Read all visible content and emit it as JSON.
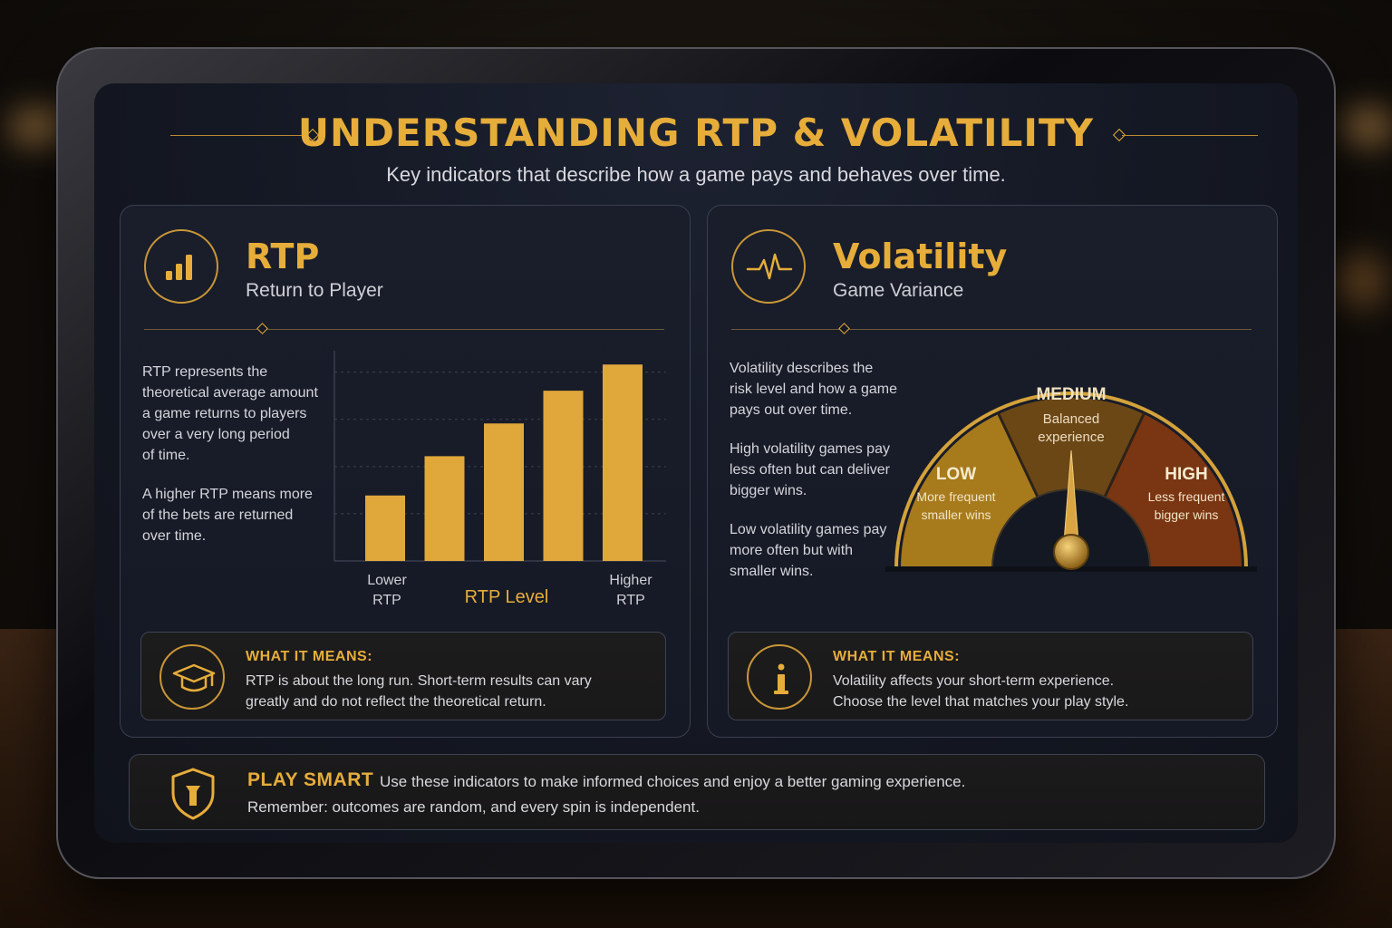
{
  "header": {
    "title": "UNDERSTANDING RTP & VOLATILITY",
    "subtitle": "Key indicators that describe how a game pays and behaves over time."
  },
  "rtp_panel": {
    "icon": "bar-chart-icon",
    "title": "RTP",
    "subtitle": "Return to Player",
    "paragraphs": [
      "RTP represents the\ntheoretical average amount\na game returns to players\nover a very long period\nof time.",
      "A higher RTP means more\nof the bets are returned\nover time."
    ],
    "info": {
      "icon": "graduation-cap-icon",
      "heading": "WHAT IT MEANS:",
      "text": "RTP is about the long run. Short-term results can vary\ngreatly and do not reflect the theoretical return."
    }
  },
  "volatility_panel": {
    "icon": "pulse-icon",
    "title": "Volatility",
    "subtitle": "Game Variance",
    "paragraphs": [
      "Volatility describes the\nrisk level and how a game\npays out over time.",
      "High volatility games pay\nless often but can deliver\nbigger wins.",
      "Low volatility games pay\nmore often but with\nsmaller wins."
    ],
    "gauge": {
      "segments": [
        {
          "label": "LOW",
          "desc1": "More frequent",
          "desc2": "smaller wins",
          "color": "#a77a1c"
        },
        {
          "label": "MEDIUM",
          "desc1": "Balanced",
          "desc2": "experience",
          "color": "#6b4716"
        },
        {
          "label": "HIGH",
          "desc1": "Less frequent",
          "desc2": "bigger wins",
          "color": "#7a3512"
        }
      ],
      "needle_value": 0.5
    },
    "info": {
      "icon": "info-icon",
      "heading": "WHAT IT MEANS:",
      "text": "Volatility affects your short-term experience.\nChoose the level that matches your play style."
    }
  },
  "chart_data": {
    "type": "bar",
    "categories": [
      "1",
      "2",
      "3",
      "4",
      "5"
    ],
    "values": [
      1.0,
      1.6,
      2.1,
      2.6,
      3.0
    ],
    "xlabel": "RTP Level",
    "x_left_label": [
      "Lower",
      "RTP"
    ],
    "x_right_label": [
      "Higher",
      "RTP"
    ],
    "ylim": [
      0,
      3.1
    ],
    "grid": true,
    "bar_color": "#e0a73a"
  },
  "footer": {
    "icon": "shield-icon",
    "label": "PLAY SMART",
    "text1": "Use these indicators to make informed choices and enjoy a better gaming experience.",
    "text2": "Remember: outcomes are random, and every spin is independent."
  }
}
